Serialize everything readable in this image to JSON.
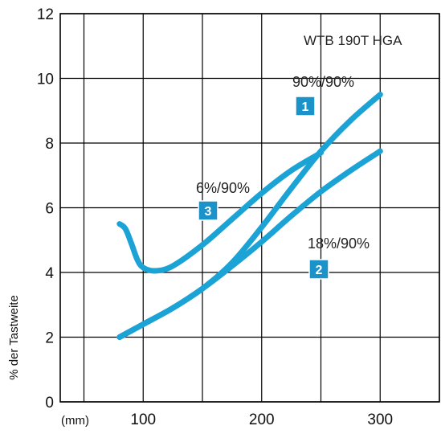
{
  "chart_data": {
    "type": "line",
    "annotation": "WTB 190T HGA",
    "unit_label": "(mm)",
    "ylabel": "% der Tastweite",
    "x_ticks": [
      100,
      200,
      300
    ],
    "y_ticks": [
      0,
      2,
      4,
      6,
      8,
      10,
      12
    ],
    "xlim": [
      30,
      350
    ],
    "ylim": [
      0,
      12
    ],
    "grid": true,
    "line_color": "#1ba3d6",
    "badge_color": "#1b93c8",
    "series": [
      {
        "name": "90%/90%",
        "badge": "1",
        "x": [
          80,
          100,
          125,
          150,
          175,
          200,
          225,
          250,
          275,
          300
        ],
        "y": [
          2.0,
          2.4,
          2.9,
          3.5,
          4.3,
          5.4,
          6.6,
          7.75,
          8.7,
          9.5
        ]
      },
      {
        "name": "18%/90%",
        "badge": "2",
        "x": [
          80,
          100,
          125,
          150,
          175,
          200,
          225,
          250,
          275,
          300
        ],
        "y": [
          2.0,
          2.4,
          2.9,
          3.5,
          4.2,
          4.95,
          5.75,
          6.5,
          7.15,
          7.75
        ]
      },
      {
        "name": "6%/90%",
        "badge": "3",
        "x": [
          80,
          85,
          90,
          95,
          100,
          110,
          125,
          150,
          175,
          200,
          225,
          250
        ],
        "y": [
          5.5,
          5.35,
          4.9,
          4.4,
          4.15,
          4.05,
          4.2,
          4.85,
          5.65,
          6.45,
          7.15,
          7.7
        ]
      }
    ]
  }
}
